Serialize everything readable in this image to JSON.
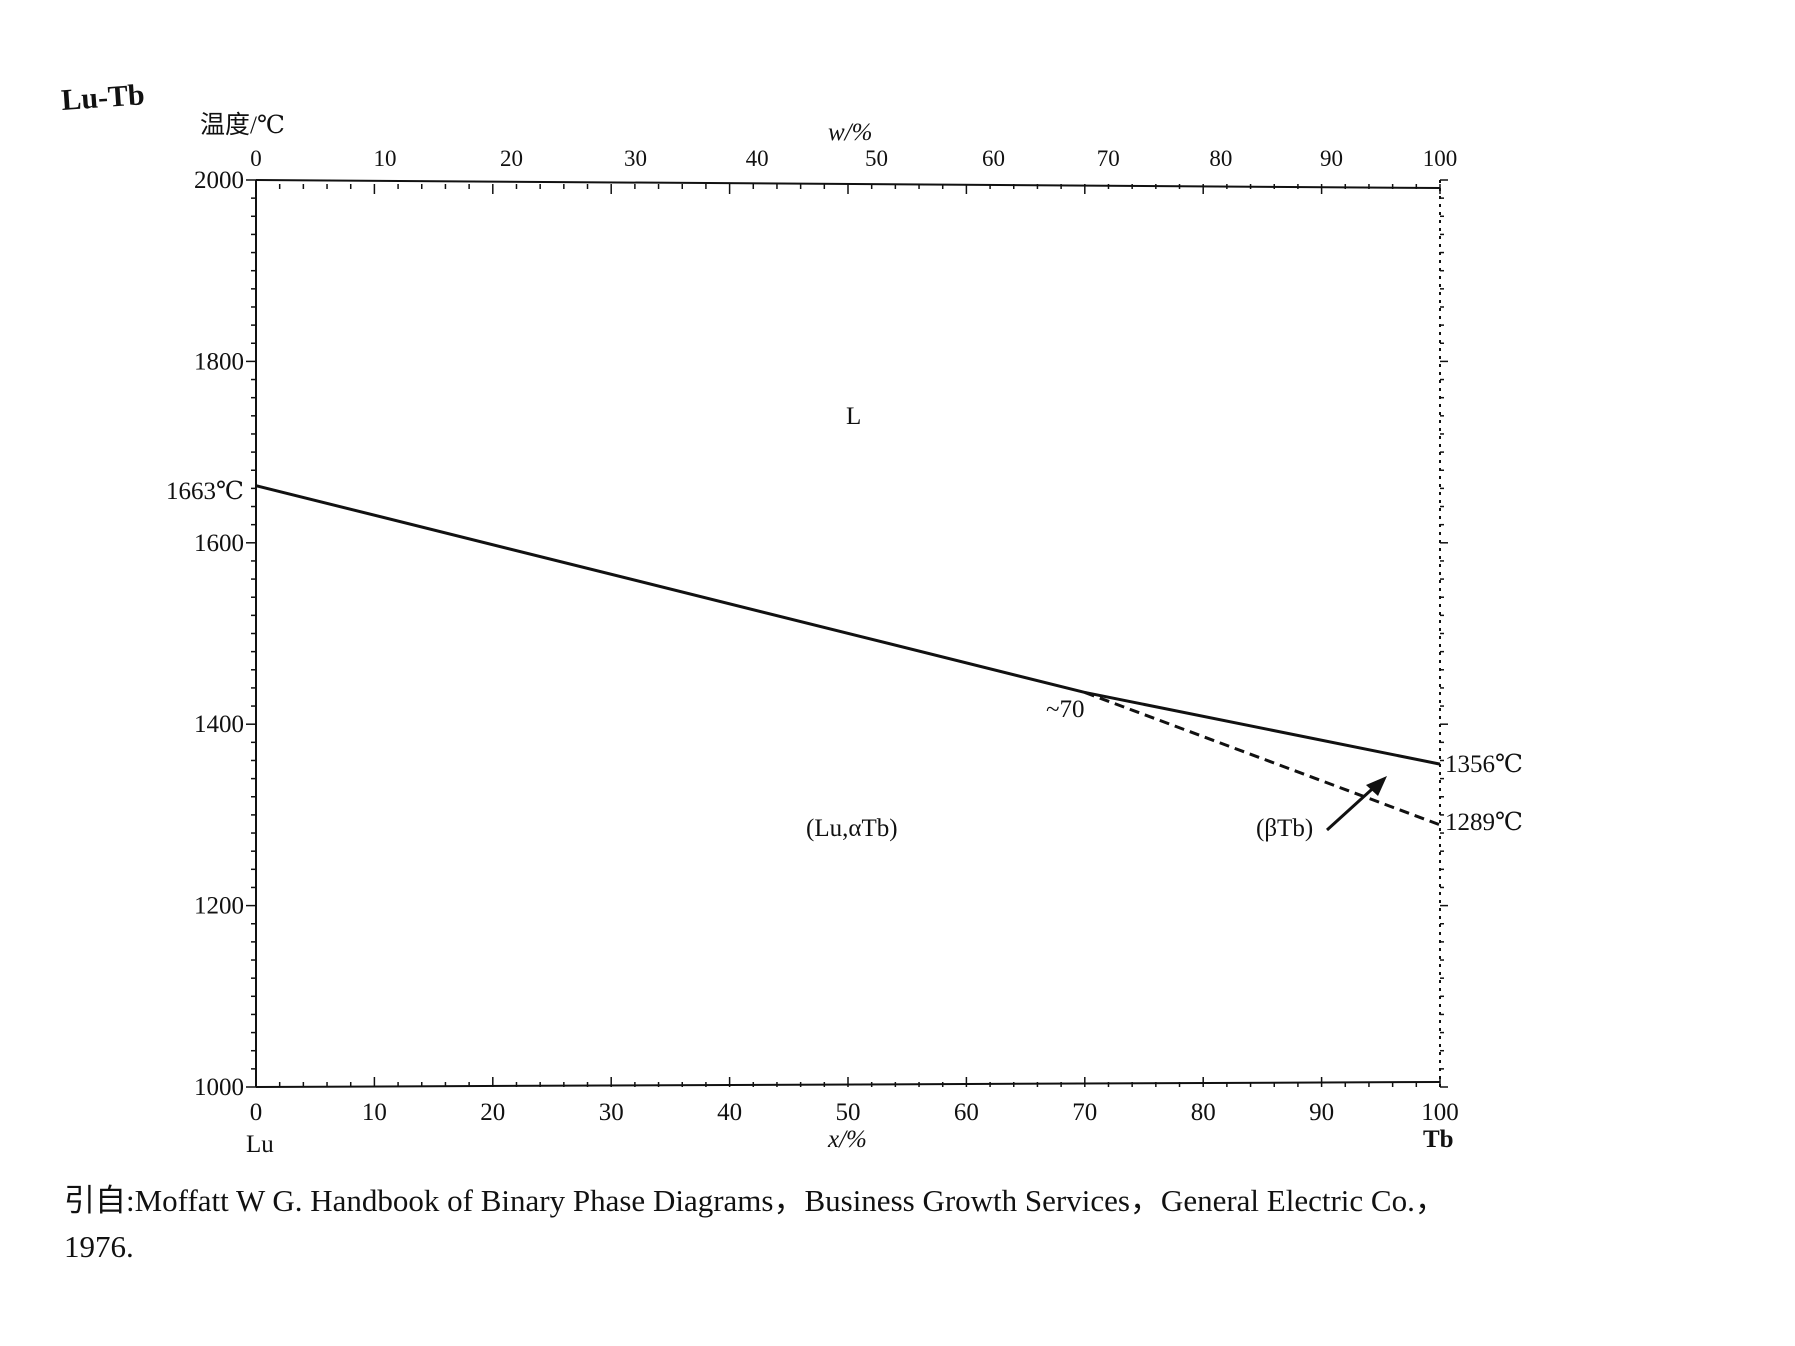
{
  "system_label": "Lu-Tb",
  "citation": {
    "line1": "引自:Moffatt W G.  Handbook of Binary Phase Diagrams，Business Growth Services，General Electric Co.，",
    "line2": "1976."
  },
  "chart_data": {
    "type": "line",
    "ylabel": "温度/℃",
    "xlabel_bottom": "x/%",
    "xlabel_top": "w/%",
    "xlim": [
      0,
      100
    ],
    "ylim": [
      1000,
      2000
    ],
    "x_ticks": [
      "0",
      "10",
      "20",
      "30",
      "40",
      "50",
      "60",
      "70",
      "80",
      "90",
      "100"
    ],
    "top_ticks": [
      "0",
      "10",
      "20",
      "30",
      "40",
      "50",
      "60",
      "70",
      "80",
      "90",
      "100"
    ],
    "y_ticks": [
      "1000",
      "1200",
      "1400",
      "1600",
      "1800",
      "2000"
    ],
    "element_left": "Lu",
    "element_right": "Tb",
    "series": [
      {
        "style": "solid",
        "x": [
          0,
          70,
          100
        ],
        "y": [
          1663,
          1435,
          1356
        ]
      },
      {
        "style": "dashed",
        "x": [
          70,
          100
        ],
        "y": [
          1435,
          1289
        ]
      }
    ],
    "annotations": {
      "left_melting": "1663℃",
      "right_melting": "1356℃",
      "right_transform": "1289℃",
      "eutectoid": "~70"
    },
    "phase_labels": {
      "liquid": "L",
      "solid_solution": "(Lu,αTb)",
      "beta_phase": "(βTb)"
    }
  }
}
